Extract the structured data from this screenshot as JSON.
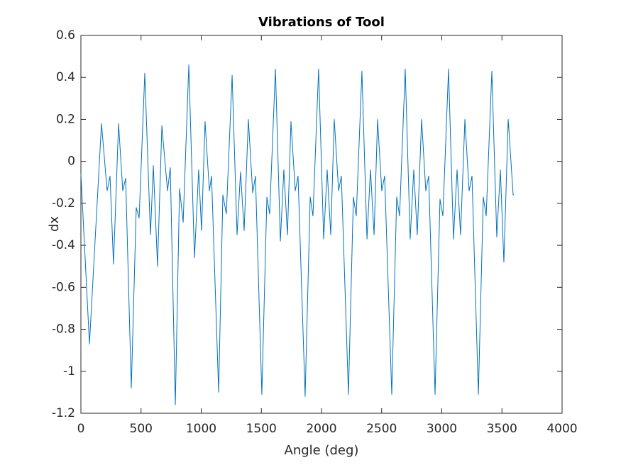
{
  "chart_data": {
    "type": "line",
    "title": "Vibrations of Tool",
    "x_label": "Angle (deg)",
    "y_label": "dx",
    "xlim": [
      0,
      4000
    ],
    "xticks": [
      0,
      500,
      1000,
      1500,
      2000,
      2500,
      3000,
      3500,
      4000
    ],
    "ylim": [
      -1.2,
      0.6
    ],
    "yticks": [
      -1.2,
      -1,
      -0.8,
      -0.6,
      -0.4,
      -0.2,
      0,
      0.2,
      0.4,
      0.6
    ],
    "grid": false,
    "x": [
      0,
      71,
      171,
      218,
      242,
      271,
      313,
      348,
      372,
      419,
      460,
      484,
      531,
      578,
      602,
      637,
      673,
      720,
      743,
      785,
      820,
      850,
      897,
      944,
      979,
      1003,
      1032,
      1068,
      1086,
      1145,
      1180,
      1209,
      1257,
      1298,
      1327,
      1357,
      1392,
      1428,
      1451,
      1504,
      1546,
      1569,
      1617,
      1658,
      1687,
      1717,
      1746,
      1782,
      1805,
      1864,
      1906,
      1929,
      1976,
      2018,
      2047,
      2077,
      2106,
      2142,
      2165,
      2224,
      2265,
      2289,
      2336,
      2378,
      2407,
      2437,
      2466,
      2501,
      2525,
      2584,
      2625,
      2649,
      2696,
      2737,
      2767,
      2796,
      2832,
      2867,
      2891,
      2944,
      2985,
      3009,
      3056,
      3097,
      3127,
      3156,
      3192,
      3227,
      3251,
      3304,
      3345,
      3369,
      3416,
      3457,
      3487,
      3516,
      3552,
      3593,
      3600
    ],
    "series": [
      {
        "name": "dx",
        "color": "#0072bd",
        "values": [
          -0.06,
          -0.87,
          0.18,
          -0.14,
          -0.07,
          -0.49,
          0.18,
          -0.14,
          -0.08,
          -1.08,
          -0.22,
          -0.27,
          0.42,
          -0.35,
          -0.02,
          -0.5,
          0.17,
          -0.14,
          -0.03,
          -1.16,
          -0.13,
          -0.29,
          0.46,
          -0.46,
          -0.04,
          -0.33,
          0.19,
          -0.14,
          -0.07,
          -1.1,
          -0.16,
          -0.25,
          0.41,
          -0.35,
          -0.05,
          -0.33,
          0.2,
          -0.15,
          -0.07,
          -1.11,
          -0.17,
          -0.25,
          0.44,
          -0.38,
          -0.04,
          -0.35,
          0.19,
          -0.14,
          -0.07,
          -1.12,
          -0.17,
          -0.26,
          0.44,
          -0.37,
          -0.04,
          -0.35,
          0.2,
          -0.14,
          -0.07,
          -1.11,
          -0.17,
          -0.26,
          0.43,
          -0.37,
          -0.04,
          -0.35,
          0.2,
          -0.14,
          -0.07,
          -1.11,
          -0.17,
          -0.26,
          0.44,
          -0.37,
          -0.04,
          -0.35,
          0.2,
          -0.14,
          -0.07,
          -1.11,
          -0.18,
          -0.26,
          0.44,
          -0.37,
          -0.04,
          -0.35,
          0.2,
          -0.14,
          -0.07,
          -1.11,
          -0.17,
          -0.26,
          0.43,
          -0.36,
          -0.04,
          -0.48,
          0.2,
          -0.16,
          -0.16
        ]
      }
    ]
  }
}
